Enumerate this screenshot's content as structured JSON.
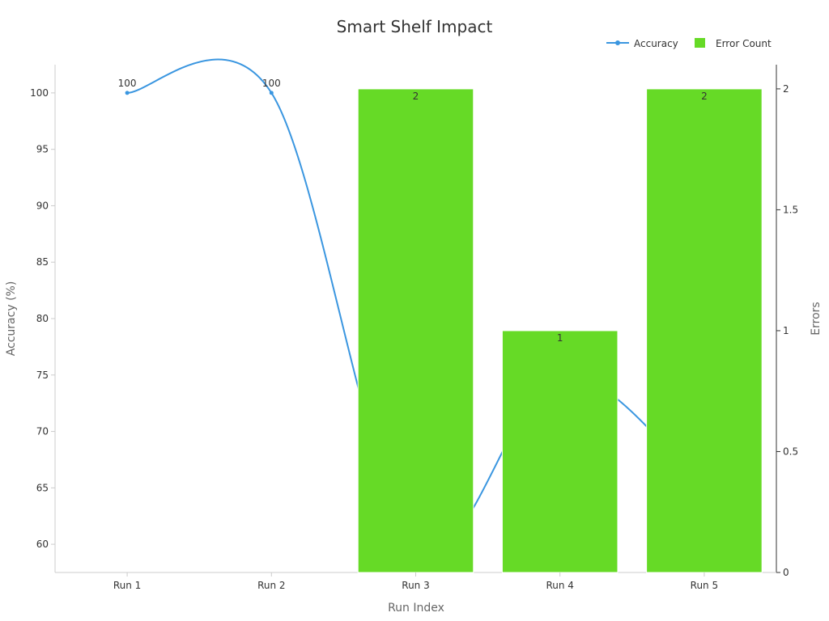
{
  "chart_data": {
    "type": "bar",
    "title": "Smart Shelf Impact",
    "xlabel": "Run Index",
    "ylabel_left": "Accuracy (%)",
    "ylabel_right": "Errors",
    "categories": [
      "Run 1",
      "Run 2",
      "Run 3",
      "Run 4",
      "Run 5"
    ],
    "series": [
      {
        "name": "Accuracy",
        "type": "line",
        "axis": "left",
        "values": [
          100,
          100,
          60,
          75,
          65
        ],
        "data_labels": [
          "100",
          "100",
          "",
          "",
          ""
        ]
      },
      {
        "name": "Error Count",
        "type": "bar",
        "axis": "right",
        "values": [
          0,
          0,
          2,
          1,
          2
        ],
        "data_labels": [
          "",
          "",
          "2",
          "1",
          "2"
        ]
      }
    ],
    "left_axis": {
      "min": 57.5,
      "max": 102.5,
      "ticks": [
        60,
        65,
        70,
        75,
        80,
        85,
        90,
        95,
        100
      ],
      "tick_labels": [
        "60",
        "65",
        "70",
        "75",
        "80",
        "85",
        "90",
        "95",
        "100"
      ]
    },
    "right_axis": {
      "min": 0,
      "max": 2.1,
      "ticks": [
        0,
        0.5,
        1,
        1.5,
        2
      ],
      "tick_labels": [
        "0",
        "0.5",
        "1",
        "1.5",
        "2"
      ]
    },
    "legend_position": "top-right",
    "grid": false,
    "colors": {
      "line": "#3a96e0",
      "bar": "#66da26"
    }
  }
}
